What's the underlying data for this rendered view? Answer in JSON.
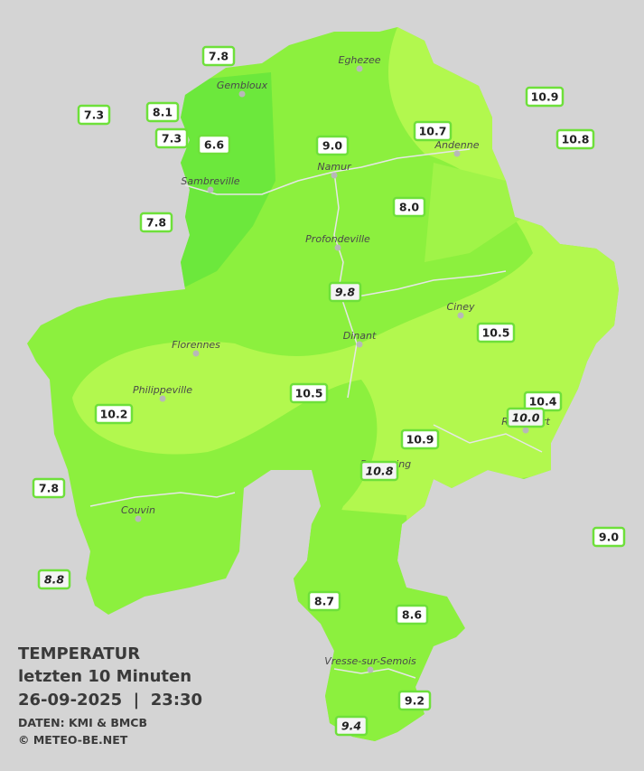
{
  "header": {
    "title": "TEMPERATUR",
    "subtitle": "letzten 10 Minuten",
    "timestamp": "26-09-2025  |  23:30",
    "source": "DATEN: KMI & BMCB",
    "copyright": "© METEO-BE.NET"
  },
  "cities": [
    "Eghezee",
    "Gembloux",
    "Andenne",
    "Namur",
    "Sambreville",
    "Profondeville",
    "Ciney",
    "Dinant",
    "Florennes",
    "Philippeville",
    "Couvin",
    "Vresse-sur-Semois",
    "Rochefort",
    "Beauraing"
  ],
  "stations": [
    "7.8",
    "7.3",
    "8.1",
    "7.3",
    "6.6",
    "9.0",
    "10.7",
    "10.9",
    "10.8",
    "7.8",
    "8.0",
    "9.8",
    "10.5",
    "10.5",
    "10.4",
    "10.0",
    "10.2",
    "10.9",
    "10.8",
    "7.8",
    "9.0",
    "8.8",
    "8.7",
    "8.6",
    "9.2",
    "9.4"
  ]
}
